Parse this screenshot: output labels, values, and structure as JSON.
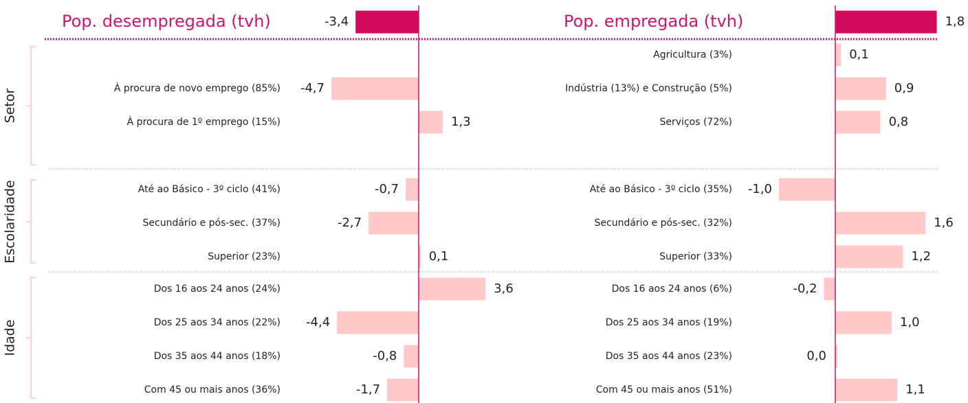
{
  "groups": [
    "Setor",
    "Escolaridade",
    "Idade"
  ],
  "chart_data": [
    {
      "type": "bar",
      "orientation": "horizontal",
      "title": "Pop. desempregada (tvh)",
      "headline_value": -3.4,
      "headline_label": "-3,4",
      "headline_color": "#d10a5c",
      "color": "#ffc9c9",
      "sections": [
        {
          "categories": [
            "À procura de novo emprego (85%)",
            "À procura de 1º emprego (15%)"
          ],
          "values": [
            -4.7,
            1.3
          ],
          "value_labels": [
            "-4,7",
            "1,3"
          ]
        },
        {
          "categories": [
            "Até ao Básico - 3º ciclo (41%)",
            "Secundário e pós-sec. (37%)",
            "Superior (23%)"
          ],
          "values": [
            -0.7,
            -2.7,
            0.1
          ],
          "value_labels": [
            "-0,7",
            "-2,7",
            "0,1"
          ]
        },
        {
          "categories": [
            "Dos 16 aos 24 anos (24%)",
            "Dos 25 aos 34 anos (22%)",
            "Dos 35 aos 44 anos (18%)",
            "Com 45 ou mais anos (36%)"
          ],
          "values": [
            3.6,
            -4.4,
            -0.8,
            -1.7
          ],
          "value_labels": [
            "3,6",
            "-4,4",
            "-0,8",
            "-1,7"
          ]
        }
      ]
    },
    {
      "type": "bar",
      "orientation": "horizontal",
      "title": "Pop. empregada (tvh)",
      "headline_value": 1.8,
      "headline_label": "1,8",
      "headline_color": "#d10a5c",
      "color": "#ffc9c9",
      "sections": [
        {
          "categories": [
            "Agricultura (3%)",
            "Indústria (13%) e Construção (5%)",
            "Serviços (72%)"
          ],
          "values": [
            0.1,
            0.9,
            0.8
          ],
          "value_labels": [
            "0,1",
            "0,9",
            "0,8"
          ]
        },
        {
          "categories": [
            "Até ao Básico - 3º ciclo (35%)",
            "Secundário e pós-sec. (32%)",
            "Superior (33%)"
          ],
          "values": [
            -1.0,
            1.6,
            1.2
          ],
          "value_labels": [
            "-1,0",
            "1,6",
            "1,2"
          ]
        },
        {
          "categories": [
            "Dos 16 aos 24 anos (6%)",
            "Dos 25 aos 34 anos (19%)",
            "Dos 35 aos 44 anos (23%)",
            "Com 45 ou mais anos (51%)"
          ],
          "values": [
            -0.2,
            1.0,
            0.0,
            1.1
          ],
          "value_labels": [
            "-0,2",
            "1,0",
            "0,0",
            "1,1"
          ]
        }
      ]
    }
  ]
}
